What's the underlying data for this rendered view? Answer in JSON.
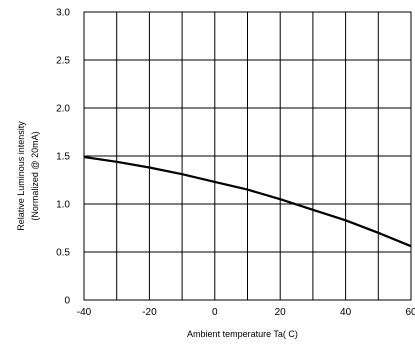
{
  "chart_data": {
    "type": "line",
    "xlabel": "Ambient temperature Ta( C)",
    "ylabel_line1": "Relative Luminous intensity",
    "ylabel_line2": "(Normalized @ 20mA)",
    "xlim": [
      -40,
      60
    ],
    "ylim": [
      0,
      3.0
    ],
    "x_ticks": [
      -40,
      -20,
      0,
      20,
      40,
      60
    ],
    "x_tick_labels": [
      "-40",
      "-20",
      "0",
      "20",
      "40",
      "60"
    ],
    "y_ticks": [
      0,
      0.5,
      1.0,
      1.5,
      2.0,
      2.5,
      3.0
    ],
    "y_tick_labels": [
      "0",
      "0.5",
      "1.0",
      "1.5",
      "2.0",
      "2.5",
      "3.0"
    ],
    "x_grid_lines": [
      -40,
      -30,
      -20,
      -10,
      0,
      10,
      20,
      30,
      40,
      50,
      60
    ],
    "y_grid_lines": [
      0,
      0.5,
      1.0,
      1.5,
      2.0,
      2.5,
      3.0
    ],
    "grid": true,
    "series": [
      {
        "x": [
          -40,
          -30,
          -20,
          -10,
          0,
          10,
          20,
          30,
          40,
          50,
          60
        ],
        "y": [
          1.49,
          1.44,
          1.38,
          1.31,
          1.23,
          1.15,
          1.05,
          0.94,
          0.83,
          0.7,
          0.56
        ]
      }
    ],
    "line_color": "#000000"
  }
}
